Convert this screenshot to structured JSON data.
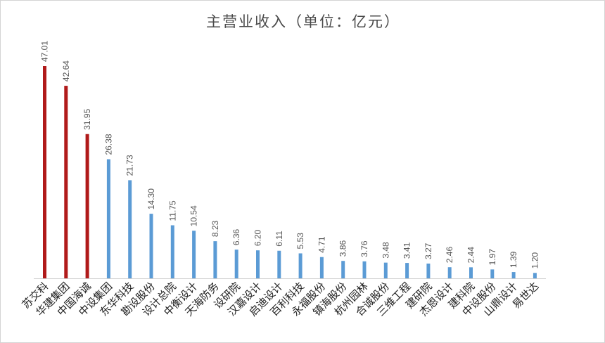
{
  "chart_data": {
    "type": "bar",
    "title": "主营业收入（单位：亿元）",
    "categories": [
      "苏交科",
      "华建集团",
      "中国海诚",
      "中设集团",
      "东华科技",
      "勘设股份",
      "设计总院",
      "中衡设计",
      "天海防务",
      "设研院",
      "汉嘉设计",
      "启迪设计",
      "百利科技",
      "永福股份",
      "镇海股份",
      "杭州园林",
      "合诚股份",
      "三维工程",
      "建研院",
      "杰恩设计",
      "建科院",
      "中设股份",
      "山鼎设计",
      "易世达"
    ],
    "values": [
      47.01,
      42.64,
      31.95,
      26.38,
      21.73,
      14.3,
      11.75,
      10.54,
      8.23,
      6.36,
      6.2,
      6.11,
      5.53,
      4.71,
      3.86,
      3.76,
      3.48,
      3.41,
      3.27,
      2.46,
      2.44,
      1.97,
      1.39,
      1.2
    ],
    "value_labels": [
      "47.01",
      "42.64",
      "31.95",
      "26.38",
      "21.73",
      "14.30",
      "11.75",
      "10.54",
      "8.23",
      "6.36",
      "6.20",
      "6.11",
      "5.53",
      "4.71",
      "3.86",
      "3.76",
      "3.48",
      "3.41",
      "3.27",
      "2.46",
      "2.44",
      "1.97",
      "1.39",
      "1.20"
    ],
    "highlight_count": 3,
    "colors": {
      "highlight": "#b01a1a",
      "normal": "#5b9bd5",
      "axis": "#d0d0d0"
    },
    "ylim": [
      0,
      50
    ],
    "xlabel": "",
    "ylabel": "",
    "grid": false
  }
}
